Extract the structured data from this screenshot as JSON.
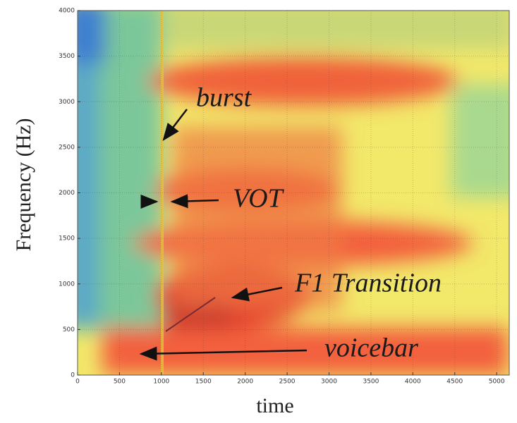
{
  "chart_data": {
    "type": "spectrogram",
    "x_label": "time",
    "y_label": "Frequency (Hz)",
    "xlim": [
      0,
      5150
    ],
    "xticks": [
      0,
      500,
      1000,
      1500,
      2000,
      2500,
      3000,
      3500,
      4000,
      4500,
      5000
    ],
    "ylim": [
      0,
      4000
    ],
    "yticks": [
      0,
      500,
      1000,
      1500,
      2000,
      2500,
      3000,
      3500,
      4000
    ],
    "grid": true,
    "annotations": [
      "burst",
      "VOT",
      "F1 Transition",
      "voicebar"
    ]
  }
}
